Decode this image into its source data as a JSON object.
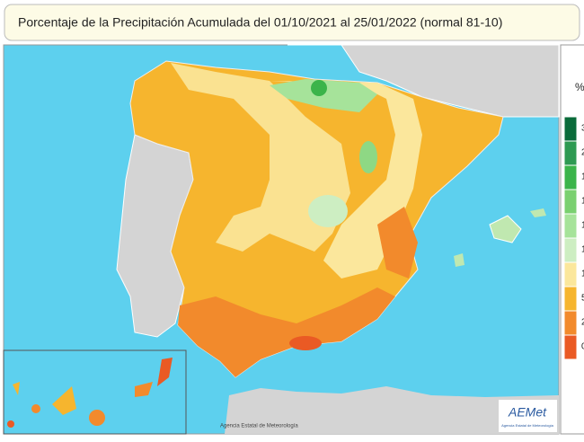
{
  "title": "Porcentaje de la Precipitación Acumulada del 01/10/2021 al 25/01/2022 (normal 81-10)",
  "legend": {
    "unit": "%",
    "labels": [
      "3",
      "2",
      "1",
      "1",
      "1",
      "1",
      "1",
      "5",
      "2",
      "0"
    ]
  },
  "credit": "Agencia Estatal de Meteorología",
  "logo": {
    "name": "AEMet",
    "subtitle": "Agencia Estatal de Meteorología"
  }
}
